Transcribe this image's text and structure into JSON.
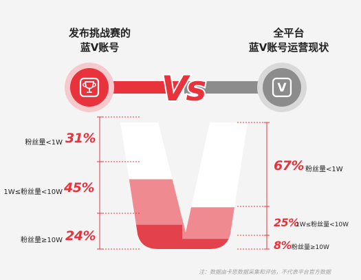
{
  "left_title": {
    "line1": "发布挑战赛的",
    "line2": "蓝V账号"
  },
  "right_title": {
    "line1": "全平台",
    "line2": "蓝V账号运营现状"
  },
  "vs_text": "Vs",
  "right_icon_text": "V",
  "left_icon": "trophy-icon",
  "right_icon": "v-badge-icon",
  "colors": {
    "accent": "#e8323c",
    "tier_small": "#fbc9cd",
    "tier_mid": "#f08a91",
    "tier_large": "#e3424c",
    "gray": "#8c8c8c"
  },
  "note": "注：数据由卡思数据采集和评估，不代表平台官方数据",
  "chart_data": [
    {
      "type": "bar",
      "title": "发布挑战赛的蓝V账号",
      "categories": [
        "粉丝量<1W",
        "1W≤粉丝量<10W",
        "粉丝量≥10W"
      ],
      "values": [
        31,
        45,
        24
      ],
      "value_labels": [
        "31%",
        "45%",
        "24%"
      ]
    },
    {
      "type": "bar",
      "title": "全平台蓝V账号运营现状",
      "categories": [
        "粉丝量<1W",
        "1W≤粉丝量<10W",
        "粉丝量≥10W"
      ],
      "values": [
        67,
        25,
        8
      ],
      "value_labels": [
        "67%",
        "25%",
        "8%"
      ]
    }
  ]
}
